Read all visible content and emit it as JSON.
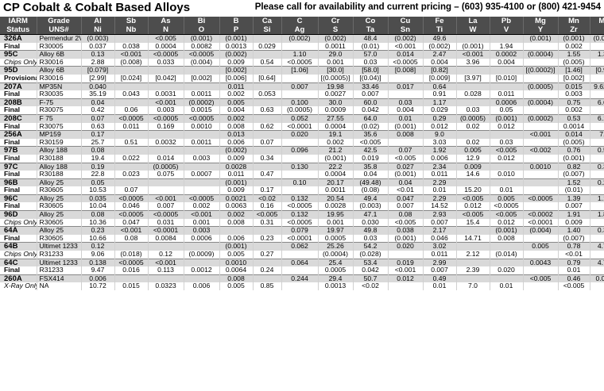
{
  "header": {
    "title": "CP Cobalt & Cobalt Based Alloys",
    "contact": "Please call for availability and current pricing – (603) 935-4100 or (800) 421-9454"
  },
  "table": {
    "header_row1": [
      "IARM",
      "Grade",
      "Al",
      "Sb",
      "As",
      "Bi",
      "B",
      "Ca",
      "C",
      "Cr",
      "Co",
      "Cu",
      "Fe",
      "La",
      "Pb",
      "Mg",
      "Mn",
      "Mo"
    ],
    "header_row2": [
      "Status",
      "UNS#",
      "Ni",
      "Nb",
      "N",
      "O",
      "P",
      "Si",
      "Ag",
      "S",
      "Ta",
      "Sn",
      "Ti",
      "W",
      "V",
      "Y",
      "Zr",
      ""
    ],
    "rows": [
      {
        "id": "326A",
        "status": "Final",
        "grade": "Permendur 2V",
        "uns": "R30005",
        "r1": [
          "(0.003)",
          "",
          "<0.005",
          "(0.001)",
          "(0.001)",
          "",
          "(0.002)",
          "(0.002)",
          "48.4",
          "(0.002)",
          "49.6",
          "",
          "",
          "(0.001)",
          "(0.001)",
          "(0.002)"
        ],
        "r2": [
          "0.037",
          "0.038",
          "0.0004",
          "0.0082",
          "0.0013",
          "0.029",
          "",
          "0.0011",
          "(0.01)",
          "<0.001",
          "(0.002)",
          "(0.001)",
          "1.94",
          "",
          "0.002",
          ""
        ]
      },
      {
        "id": "95C",
        "status": "Chips Only",
        "grade": "Alloy 6B",
        "uns": "R30016",
        "r1": [
          "0.13",
          "<0.001",
          "<0.0005",
          "<0.0005",
          "(0.002)",
          "",
          "1.10",
          "29.0",
          "57.0",
          "0.014",
          "2.47",
          "<0.001",
          "0.0002",
          "(0.0004)",
          "1.55",
          "1.37"
        ],
        "r2": [
          "2.88",
          "(0.008)",
          "0.033",
          "(0.004)",
          "0.009",
          "0.54",
          "<0.0005",
          "0.001",
          "0.03",
          "<0.0005",
          "0.004",
          "3.96",
          "0.004",
          "",
          "(0.005)",
          ""
        ]
      },
      {
        "id": "95D",
        "status": "Provisional",
        "grade": "Alloy 6B",
        "uns": "R30016",
        "r1": [
          "[0.079]",
          "",
          "",
          "",
          "[0.002]",
          "",
          "[1.06]",
          "[30.0]",
          "[58.0]",
          "[0.008]",
          "[0.82]",
          "",
          "",
          "[(0.0002)]",
          "[1.46]",
          "[0.96]"
        ],
        "r2": [
          "[2.99]",
          "[0.024]",
          "[0.042]",
          "[0.002]",
          "[0.006]",
          "[0.64]",
          "",
          "[(0.0005)]",
          "[(0.04)]",
          "",
          "[0.009]",
          "[3.97]",
          "[0.010]",
          "",
          "[0.002]",
          ""
        ]
      },
      {
        "id": "207A",
        "status": "Final",
        "grade": "MP35N",
        "uns": "R30035",
        "r1": [
          "0.040",
          "",
          "",
          "",
          "0.011",
          "",
          "0.007",
          "19.98",
          "33.46",
          "0.017",
          "0.64",
          "",
          "",
          "(0.0005)",
          "0.015",
          "9.6203"
        ],
        "r2": [
          "35.19",
          "0.043",
          "0.0031",
          "0.0011",
          "0.002",
          "0.053",
          "",
          "0.0027",
          "0.007",
          "",
          "0.91",
          "0.028",
          "0.011",
          "",
          "0.003",
          ""
        ]
      },
      {
        "id": "208B",
        "status": "Final",
        "grade": "F-75",
        "uns": "R30075",
        "r1": [
          "0.04",
          "",
          "<0.001",
          "(0.0002)",
          "0.005",
          "",
          "0.100",
          "30.0",
          "60.0",
          "0.03",
          "1.17",
          "",
          "0.0006",
          "(0.0004)",
          "0.75",
          "6.63"
        ],
        "r2": [
          "0.42",
          "0.06",
          "0.003",
          "0.0015",
          "0.004",
          "0.63",
          "(0.0005)",
          "0.0009",
          "0.042",
          "0.004",
          "0.029",
          "0.03",
          "0.05",
          "",
          "0.002",
          ""
        ]
      },
      {
        "id": "208C",
        "status": "Final",
        "grade": "F 75",
        "uns": "R30075",
        "r1": [
          "0.07",
          "<0.0005",
          "<0.0005",
          "<0.0005",
          "0.002",
          "",
          "0.052",
          "27.55",
          "64.0",
          "0.01",
          "0.29",
          "(0.0005)",
          "(0.001)",
          "(0.0002)",
          "0.53",
          "6.12"
        ],
        "r2": [
          "0.63",
          "0.011",
          "0.169",
          "0.0010",
          "0.008",
          "0.62",
          "<0.0001",
          "0.0004",
          "(0.02)",
          "(0.001)",
          "0.012",
          "0.02",
          "0.012",
          "",
          "0.0014",
          ""
        ]
      },
      {
        "id": "256A",
        "status": "Final",
        "grade": "MP159",
        "uns": "R30159",
        "r1": [
          "0.17",
          "",
          "",
          "",
          "0.013",
          "",
          "0.020",
          "19.1",
          "35.6",
          "0.008",
          "9.0",
          "",
          "",
          "<0.001",
          "0.014",
          "7.0"
        ],
        "r2": [
          "25.7",
          "0.51",
          "0.0032",
          "0.0011",
          "0.006",
          "0.07",
          "",
          "0.002",
          "<0.005",
          "",
          "3.03",
          "0.02",
          "0.03",
          "",
          "(0.005)",
          ""
        ]
      },
      {
        "id": "97B",
        "status": "Final",
        "grade": "Alloy 188",
        "uns": "R30188",
        "r1": [
          "0.08",
          "",
          "",
          "",
          "(0.002)",
          "",
          "0.096",
          "21.2",
          "42.5",
          "0.07",
          "1.92",
          "0.005",
          "<0.005",
          "<0.002",
          "0.76",
          "0.56"
        ],
        "r2": [
          "19.4",
          "0.022",
          "0.014",
          "0.003",
          "0.009",
          "0.34",
          "",
          "(0.001)",
          "0.019",
          "<0.005",
          "0.006",
          "12.9",
          "0.012",
          "",
          "(0.001)",
          ""
        ]
      },
      {
        "id": "97C",
        "status": "Final",
        "grade": "Alloy 188",
        "uns": "R30188",
        "r1": [
          "0.19",
          "",
          "(0.0005)",
          "",
          "0.0028",
          "",
          "0.130",
          "22.2",
          "35.8",
          "0.027",
          "2.34",
          "0.009",
          "",
          "0.0010",
          "0.82",
          "0.36"
        ],
        "r2": [
          "22.8",
          "0.023",
          "0.075",
          "0.0007",
          "0.011",
          "0.47",
          "",
          "0.0004",
          "0.04",
          "(0.001)",
          "0.011",
          "14.6",
          "0.010",
          "",
          "(0.007)",
          ""
        ]
      },
      {
        "id": "96B",
        "status": "Final",
        "grade": "Alloy 25",
        "uns": "R30605",
        "r1": [
          "0.05",
          "",
          "",
          "",
          "(0.001)",
          "",
          "0.10",
          "20.17",
          "(49.48)",
          "0.04",
          "2.29",
          "",
          "",
          "",
          "1.52",
          "0.28"
        ],
        "r2": [
          "10.53",
          "0.07",
          "",
          "",
          "0.009",
          "0.17",
          "",
          "0.0011",
          "(0.08)",
          "<0.01",
          "0.01",
          "15.20",
          "0.01",
          "",
          "(0.01)",
          ""
        ]
      },
      {
        "id": "96C",
        "status": "Final",
        "grade": "Alloy 25",
        "uns": "R30605",
        "r1": [
          "0.035",
          "<0.0005",
          "<0.001",
          "<0.0005",
          "0.0021",
          "<0.02",
          "0.132",
          "20.54",
          "49.4",
          "0.047",
          "2.29",
          "<0.005",
          "0.005",
          "<0.0005",
          "1.39",
          "1.17"
        ],
        "r2": [
          "10.04",
          "0.046",
          "0.007",
          "0.002",
          "0.0063",
          "0.16",
          "<0.0005",
          "0.0028",
          "(0.003)",
          "0.007",
          "14.52",
          "0.012",
          "<0.0005",
          "",
          "0.007",
          ""
        ]
      },
      {
        "id": "96D",
        "status": "Chips Only",
        "grade": "Alloy 25",
        "uns": "R30605",
        "r1": [
          "0.08",
          "<0.0005",
          "<0.0005",
          "<0.001",
          "0.002",
          "<0.005",
          "0.132",
          "19.95",
          "47.1",
          "0.08",
          "2.93",
          "<0.005",
          "<0.005",
          "<0.0002",
          "1.91",
          "1.88"
        ],
        "r2": [
          "10.36",
          "0.047",
          "0.031",
          "0.001",
          "0.008",
          "0.31",
          "<0.0005",
          "0.001",
          "0.030",
          "<0.005",
          "0.007",
          "15.4",
          "0.012",
          "<0.0001",
          "0.009",
          ""
        ]
      },
      {
        "id": "64A",
        "status": "Final",
        "grade": "Alloy 25",
        "uns": "R30605",
        "r1": [
          "0.23",
          "<0.001",
          "<0.0001",
          "0.003",
          "",
          "",
          "0.079",
          "19.97",
          "49.8",
          "0.038",
          "2.17",
          "",
          "(0.001)",
          "(0.004)",
          "1.40",
          "0.35"
        ],
        "r2": [
          "10.66",
          "0.08",
          "0.0084",
          "0.0006",
          "0.006",
          "0.23",
          "<0.0001",
          "0.0005",
          "0.03",
          "(0.001)",
          "0.046",
          "14.71",
          "0.008",
          "",
          "(0.007)",
          ""
        ]
      },
      {
        "id": "64B",
        "status": "Chips Only",
        "grade": "Ultimet 1233",
        "uns": "R31233",
        "r1": [
          "0.12",
          "",
          "",
          "",
          "(0.001)",
          "",
          "0.062",
          "25.26",
          "54.2",
          "0.020",
          "3.02",
          "",
          "",
          "0.005",
          "0.78",
          "4.77"
        ],
        "r2": [
          "9.06",
          "(0.018)",
          "0.12",
          "(0.0009)",
          "0.005",
          "0.27",
          "",
          "(0.0004)",
          "(0.028)",
          "",
          "0.011",
          "2.12",
          "(0.014)",
          "",
          "<0.01",
          ""
        ]
      },
      {
        "id": "64C",
        "status": "Final",
        "grade": "Ultimet 1233",
        "uns": "R31233",
        "r1": [
          "0.138",
          "<0.0005",
          "<0.001",
          "",
          "0.0010",
          "",
          "0.064",
          "25.4",
          "53.4",
          "0.019",
          "2.99",
          "",
          "",
          "0.0043",
          "0.79",
          "4.72"
        ],
        "r2": [
          "9.47",
          "0.016",
          "0.113",
          "0.0012",
          "0.0064",
          "0.24",
          "",
          "0.0005",
          "0.042",
          "<0.001",
          "0.007",
          "2.39",
          "0.020",
          "",
          "0.01",
          ""
        ]
      },
      {
        "id": "260A",
        "status": "X-Ray Only",
        "grade": "FSX414",
        "uns": "NA",
        "r1": [
          "0.006",
          "",
          "",
          "",
          "0.008",
          "",
          "0.244",
          "29.4",
          "50.7",
          "0.012",
          "0.49",
          "",
          "",
          "<0.005",
          "0.46",
          "0.015"
        ],
        "r2": [
          "10.72",
          "0.015",
          "0.0323",
          "0.006",
          "0.005",
          "0.85",
          "",
          "0.0013",
          "<0.02",
          "",
          "0.01",
          "7.0",
          "0.01",
          "",
          "<0.005",
          ""
        ]
      }
    ]
  }
}
